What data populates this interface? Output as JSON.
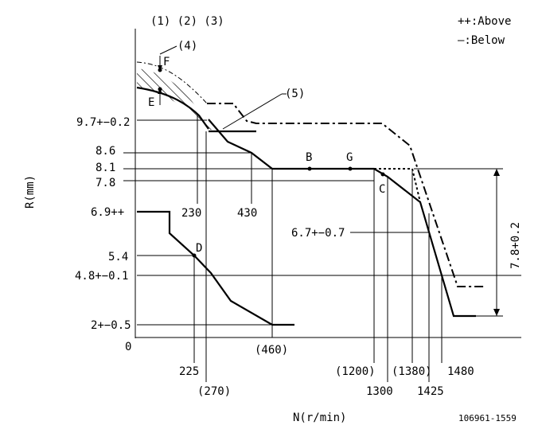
{
  "header": {
    "markers": "(1) (2) (3)",
    "legend_above": "++:Above",
    "legend_below": "—:Below"
  },
  "axes": {
    "y_label": "R(mm)",
    "x_label": "N(r/min)",
    "origin": "0"
  },
  "y_ticks": {
    "t97": "9.7+−0.2",
    "t86": "8.6",
    "t81": "8.1",
    "t78": "7.8",
    "t69": "6.9++",
    "t54": "5.4",
    "t48": "4.8+−0.1",
    "t2": "2+−0.5"
  },
  "x_ticks": {
    "x230": "230",
    "x430": "430",
    "x225": "225",
    "x270": "(270)",
    "x460": "(460)",
    "x1200": "(1200)",
    "x1300": "1300",
    "x1380": "(1380)",
    "x1425": "1425",
    "x1480": "1480"
  },
  "point_labels": {
    "B": "B",
    "G": "G",
    "C": "C",
    "D": "D",
    "E": "E",
    "F": "F",
    "four": "(4)",
    "five": "(5)"
  },
  "annotations": {
    "tol_67": "6.7+−0.7",
    "span_78": "7.8+0.2"
  },
  "footer": {
    "code": "106961-1559"
  }
}
